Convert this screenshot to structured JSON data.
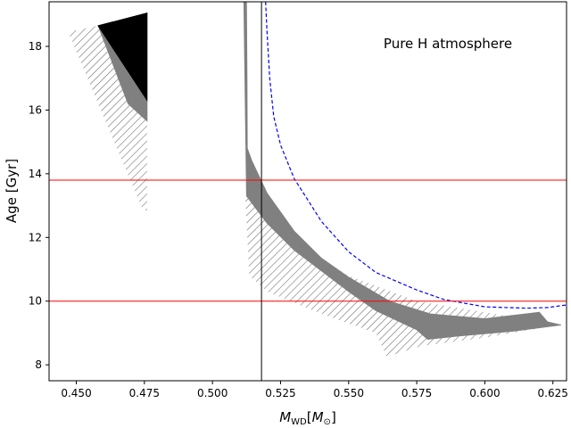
{
  "chart_data": {
    "type": "area",
    "xlabel": "M_WD [M_⊙]",
    "xlabel_main": "M",
    "xlabel_sub": "WD",
    "xlabel_bracket_open": "[",
    "xlabel_inner_main": "M",
    "xlabel_inner_sub": "⊙",
    "xlabel_bracket_close": "]",
    "ylabel": "Age [Gyr]",
    "xlim": [
      0.44,
      0.63
    ],
    "ylim": [
      7.5,
      19.4
    ],
    "xticks": [
      0.45,
      0.475,
      0.5,
      0.525,
      0.55,
      0.575,
      0.6,
      0.625
    ],
    "xtick_labels": [
      "0.450",
      "0.475",
      "0.500",
      "0.525",
      "0.550",
      "0.575",
      "0.600",
      "0.625"
    ],
    "yticks": [
      8,
      10,
      12,
      14,
      16,
      18
    ],
    "ytick_labels": [
      "8",
      "10",
      "12",
      "14",
      "16",
      "18"
    ],
    "annotation": "Pure H atmosphere",
    "hlines": [
      {
        "y": 13.8,
        "color": "#ff0000"
      },
      {
        "y": 10.0,
        "color": "#ff0000"
      }
    ],
    "vline": {
      "x": 0.518,
      "color": "#000000"
    },
    "series": [
      {
        "fill": "hatch",
        "color": "#555555",
        "points": [
          [
            0.447,
            18.45
          ],
          [
            0.458,
            18.65
          ],
          [
            0.476,
            15.7
          ],
          [
            0.476,
            12.8
          ],
          [
            0.474,
            12.95
          ],
          [
            0.447,
            18.45
          ]
        ]
      },
      {
        "fill": "hatch",
        "color": "#555555",
        "points": [
          [
            0.512,
            13.3
          ],
          [
            0.5135,
            10.8
          ],
          [
            0.52,
            10.3
          ],
          [
            0.54,
            9.6
          ],
          [
            0.56,
            9.0
          ],
          [
            0.564,
            8.25
          ],
          [
            0.577,
            8.6
          ],
          [
            0.6,
            8.85
          ],
          [
            0.627,
            9.25
          ],
          [
            0.625,
            9.3
          ],
          [
            0.575,
            10.0
          ],
          [
            0.55,
            10.8
          ],
          [
            0.53,
            11.8
          ],
          [
            0.52,
            12.6
          ],
          [
            0.512,
            13.3
          ]
        ]
      },
      {
        "fill": "solid",
        "color": "#808080",
        "points": [
          [
            0.458,
            18.65
          ],
          [
            0.476,
            16.3
          ],
          [
            0.476,
            15.65
          ],
          [
            0.469,
            16.2
          ],
          [
            0.458,
            18.65
          ]
        ]
      },
      {
        "fill": "solid",
        "color": "#808080",
        "points": [
          [
            0.5115,
            19.4
          ],
          [
            0.5125,
            19.4
          ],
          [
            0.5127,
            17.0
          ],
          [
            0.5128,
            14.8
          ],
          [
            0.5145,
            14.4
          ],
          [
            0.52,
            13.4
          ],
          [
            0.53,
            12.2
          ],
          [
            0.54,
            11.35
          ],
          [
            0.55,
            10.75
          ],
          [
            0.565,
            10.0
          ],
          [
            0.58,
            9.6
          ],
          [
            0.6,
            9.45
          ],
          [
            0.62,
            9.65
          ],
          [
            0.623,
            9.35
          ],
          [
            0.628,
            9.25
          ],
          [
            0.61,
            9.05
          ],
          [
            0.59,
            8.9
          ],
          [
            0.579,
            8.8
          ],
          [
            0.575,
            9.1
          ],
          [
            0.56,
            9.7
          ],
          [
            0.55,
            10.3
          ],
          [
            0.53,
            11.6
          ],
          [
            0.52,
            12.45
          ],
          [
            0.5125,
            13.3
          ],
          [
            0.5118,
            17.5
          ],
          [
            0.5115,
            19.4
          ]
        ]
      },
      {
        "fill": "solid",
        "color": "#000000",
        "points": [
          [
            0.458,
            18.65
          ],
          [
            0.476,
            19.05
          ],
          [
            0.476,
            16.3
          ],
          [
            0.458,
            18.65
          ]
        ]
      },
      {
        "fill": "dashed",
        "color": "#0000ff",
        "points": [
          [
            0.5195,
            19.4
          ],
          [
            0.52,
            18.5
          ],
          [
            0.521,
            17.0
          ],
          [
            0.5225,
            15.8
          ],
          [
            0.525,
            14.9
          ],
          [
            0.53,
            13.85
          ],
          [
            0.54,
            12.5
          ],
          [
            0.55,
            11.55
          ],
          [
            0.56,
            10.9
          ],
          [
            0.575,
            10.35
          ],
          [
            0.585,
            10.05
          ],
          [
            0.6,
            9.82
          ],
          [
            0.615,
            9.78
          ],
          [
            0.623,
            9.8
          ],
          [
            0.63,
            9.88
          ]
        ]
      }
    ]
  }
}
